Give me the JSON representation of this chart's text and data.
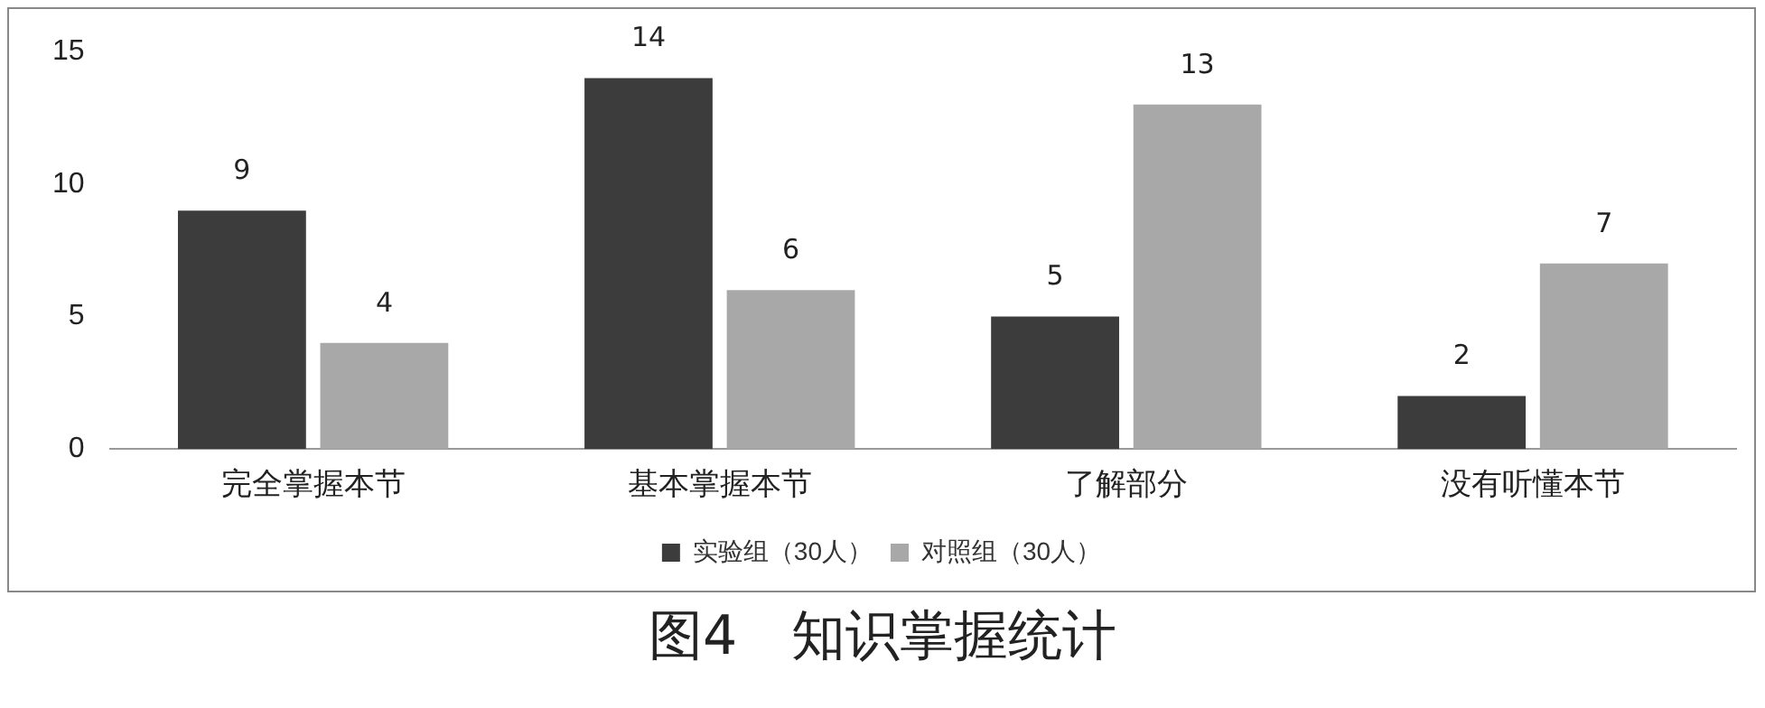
{
  "chart_data": {
    "type": "bar",
    "title": "图4　知识掌握统计",
    "categories": [
      "完全掌握本节",
      "基本掌握本节",
      "了解部分",
      "没有听懂本节"
    ],
    "series": [
      {
        "name": "实验组（30人）",
        "color": "#3c3c3c",
        "values": [
          9,
          14,
          5,
          2
        ]
      },
      {
        "name": "对照组（30人）",
        "color": "#a8a8a8",
        "values": [
          4,
          6,
          13,
          7
        ]
      }
    ],
    "ylim": [
      0,
      15
    ],
    "yticks": [
      0,
      5,
      10,
      15
    ],
    "grid": false,
    "legend": "bottom",
    "data_labels": true
  }
}
